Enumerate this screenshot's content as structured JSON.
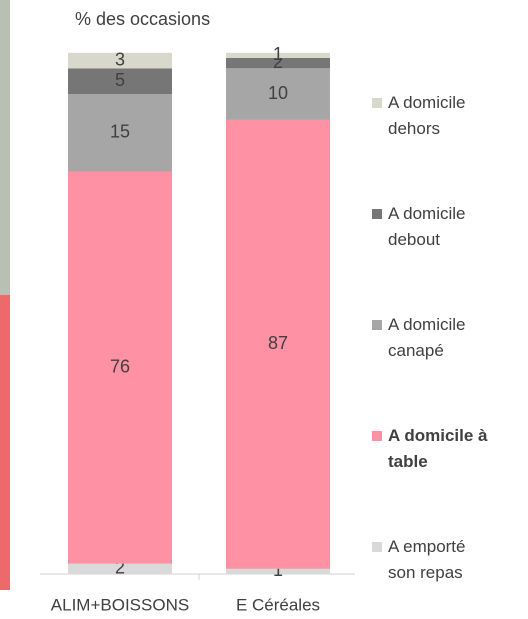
{
  "chart_data": {
    "type": "stacked_bar",
    "title": "% des occasions",
    "categories": [
      "ALIM+BOISSONS",
      "E Céréales"
    ],
    "series": [
      {
        "name": "A emporté son repas",
        "color": "#d9d9d9",
        "values": [
          2,
          1
        ]
      },
      {
        "name": "A domicile à table",
        "color": "#ff91a4",
        "values": [
          76,
          87
        ],
        "bold": true
      },
      {
        "name": "A domicile canapé",
        "color": "#a6a6a6",
        "values": [
          15,
          10
        ]
      },
      {
        "name": "A domicile debout",
        "color": "#767676",
        "values": [
          5,
          2
        ]
      },
      {
        "name": "A domicile dehors",
        "color": "#d8d8cc",
        "values": [
          3,
          1
        ]
      }
    ],
    "ylim": [
      0,
      100
    ]
  }
}
